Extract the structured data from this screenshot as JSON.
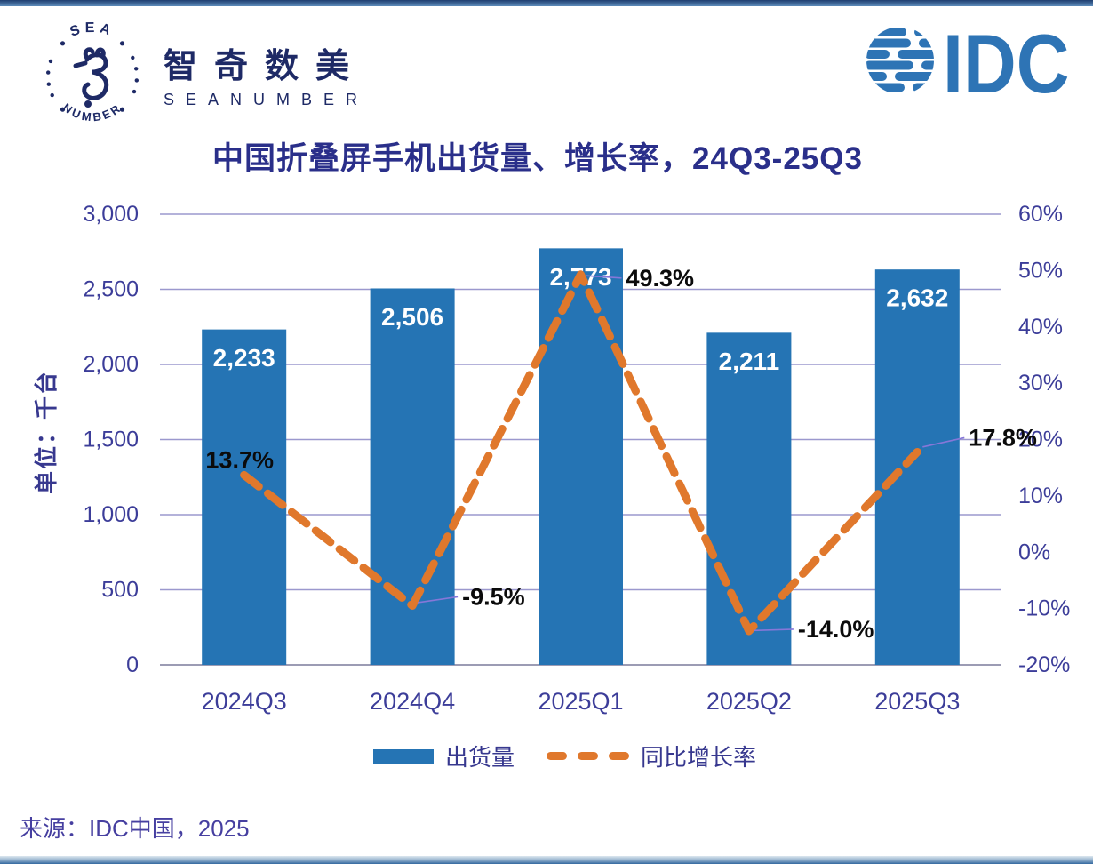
{
  "brand": {
    "seal_top": "SEA",
    "seal_bottom": "NUMBER",
    "name_cn": "智奇数美",
    "name_en": "SEANUMBER"
  },
  "idc_logo_text": "IDC",
  "title": "中国折叠屏手机出货量、增长率，24Q3-25Q3",
  "source": "来源：IDC中国，2025",
  "legend": [
    {
      "label": "出货量",
      "type": "bar",
      "color": "#2574B4"
    },
    {
      "label": "同比增长率",
      "type": "dashed-line",
      "color": "#E0782C"
    }
  ],
  "colors": {
    "bar": "#2574B4",
    "line": "#E0782C",
    "gridline": "#9B98CE",
    "axis_text": "#3C3D99",
    "title_text": "#2A2F8A",
    "value_label_on_bar": "#FFFFFF",
    "line_point_label": "#0B0B0B",
    "idc_blue": "#2E74B5",
    "brand_navy": "#1E2A66"
  },
  "chart_data": {
    "type": "bar",
    "combo": "bar+line",
    "title": "中国折叠屏手机出货量、增长率，24Q3-25Q3",
    "categories": [
      "2024Q3",
      "2024Q4",
      "2025Q1",
      "2025Q2",
      "2025Q3"
    ],
    "series": [
      {
        "name": "出货量",
        "type": "bar",
        "axis": "left",
        "values": [
          2233,
          2506,
          2773,
          2211,
          2632
        ],
        "value_labels": [
          "2,233",
          "2,506",
          "2,773",
          "2,211",
          "2,632"
        ],
        "color": "#2574B4"
      },
      {
        "name": "同比增长率",
        "type": "line",
        "style": "dashed",
        "axis": "right",
        "values": [
          13.7,
          -9.5,
          49.3,
          -14.0,
          17.8
        ],
        "value_labels": [
          "13.7%",
          "-9.5%",
          "49.3%",
          "-14.0%",
          "17.8%"
        ],
        "color": "#E0782C"
      }
    ],
    "left_axis": {
      "title": "单位：千台",
      "min": 0,
      "max": 3000,
      "step": 500,
      "tick_labels": [
        "0",
        "500",
        "1,000",
        "1,500",
        "2,000",
        "2,500",
        "3,000"
      ]
    },
    "right_axis": {
      "min": -20,
      "max": 60,
      "step": 10,
      "tick_labels": [
        "-20%",
        "-10%",
        "0%",
        "10%",
        "20%",
        "30%",
        "40%",
        "50%",
        "60%"
      ]
    },
    "grid": true,
    "legend_position": "bottom"
  }
}
